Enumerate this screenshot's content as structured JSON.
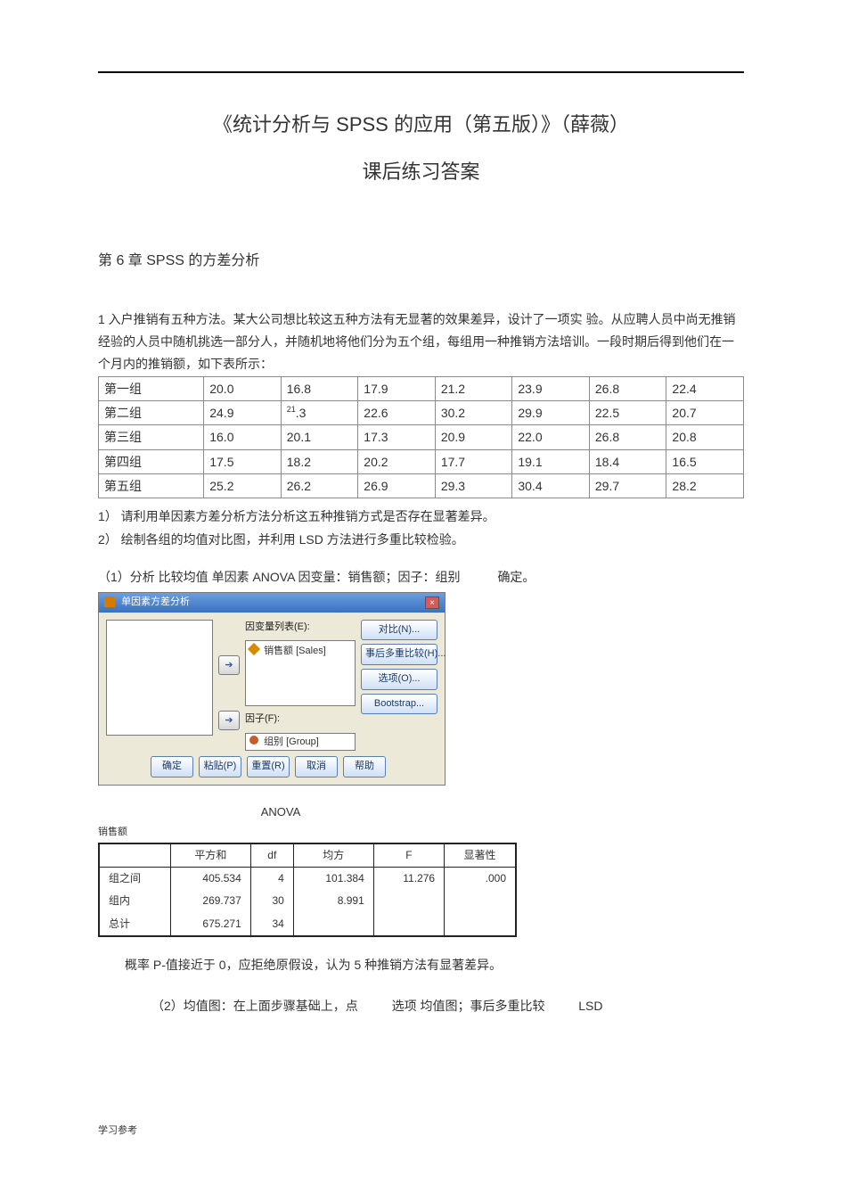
{
  "title_line1": "《统计分析与 SPSS 的应用（第五版）》（薛薇）",
  "title_line2": "课后练习答案",
  "chapter": "第 6 章 SPSS 的方差分析",
  "intro": "1 入户推销有五种方法。某大公司想比较这五种方法有无显著的效果差异，设计了一项实  验。从应聘人员中尚无推销经验的人员中随机挑选一部分人，并随机地将他们分为五个组，每组用一种推销方法培训。一段时期后得到他们在一个月内的推销额，如下表所示：",
  "data_table": {
    "rows": [
      {
        "label": "第一组",
        "vals": [
          "20.0",
          "16.8",
          "17.9",
          "21.2",
          "23.9",
          "26.8",
          "22.4"
        ]
      },
      {
        "label": "第二组",
        "vals": [
          "24.9",
          "21.3",
          "22.6",
          "30.2",
          "29.9",
          "22.5",
          "20.7"
        ],
        "sup_col": 1
      },
      {
        "label": "第三组",
        "vals": [
          "16.0",
          "20.1",
          "17.3",
          "20.9",
          "22.0",
          "26.8",
          "20.8"
        ]
      },
      {
        "label": "第四组",
        "vals": [
          "17.5",
          "18.2",
          "20.2",
          "17.7",
          "19.1",
          "18.4",
          "16.5"
        ]
      },
      {
        "label": "第五组",
        "vals": [
          "25.2",
          "26.2",
          "26.9",
          "29.3",
          "30.4",
          "29.7",
          "28.2"
        ]
      }
    ]
  },
  "q1": "1）  请利用单因素方差分析方法分析这五种推销方式是否存在显著差异。",
  "q2": "2）  绘制各组的均值对比图，并利用        LSD 方法进行多重比较检验。",
  "step1_a": "（1）分析 比较均值 单因素 ANOVA 因变量：销售额；因子：组别",
  "step1_b": "确定。",
  "spss": {
    "title": "单因素方差分析",
    "dep_label": "因变量列表(E):",
    "dep_item": "销售额 [Sales]",
    "factor_label": "因子(F):",
    "factor_item": "组别 [Group]",
    "side": {
      "contrast": "对比(N)...",
      "posthoc": "事后多重比较(H)...",
      "options": "选项(O)...",
      "bootstrap": "Bootstrap..."
    },
    "bottom": {
      "ok": "确定",
      "paste": "粘贴(P)",
      "reset": "重置(R)",
      "cancel": "取消",
      "help": "帮助"
    },
    "close": "×"
  },
  "anova": {
    "caption": "ANOVA",
    "subject": "销售额",
    "headers": [
      "",
      "平方和",
      "df",
      "均方",
      "F",
      "显著性"
    ],
    "rows": [
      {
        "label": "组之间",
        "ss": "405.534",
        "df": "4",
        "ms": "101.384",
        "f": "11.276",
        "sig": ".000"
      },
      {
        "label": "组内",
        "ss": "269.737",
        "df": "30",
        "ms": "8.991",
        "f": "",
        "sig": ""
      },
      {
        "label": "总计",
        "ss": "675.271",
        "df": "34",
        "ms": "",
        "f": "",
        "sig": ""
      }
    ]
  },
  "conclusion": "概率 P-值接近于 0，应拒绝原假设，认为 5 种推销方法有显著差异。",
  "step2_a": "（2）均值图：在上面步骤基础上，点",
  "step2_b": "选项 均值图；事后多重比较",
  "step2_c": "LSD",
  "footer": "学习参考"
}
